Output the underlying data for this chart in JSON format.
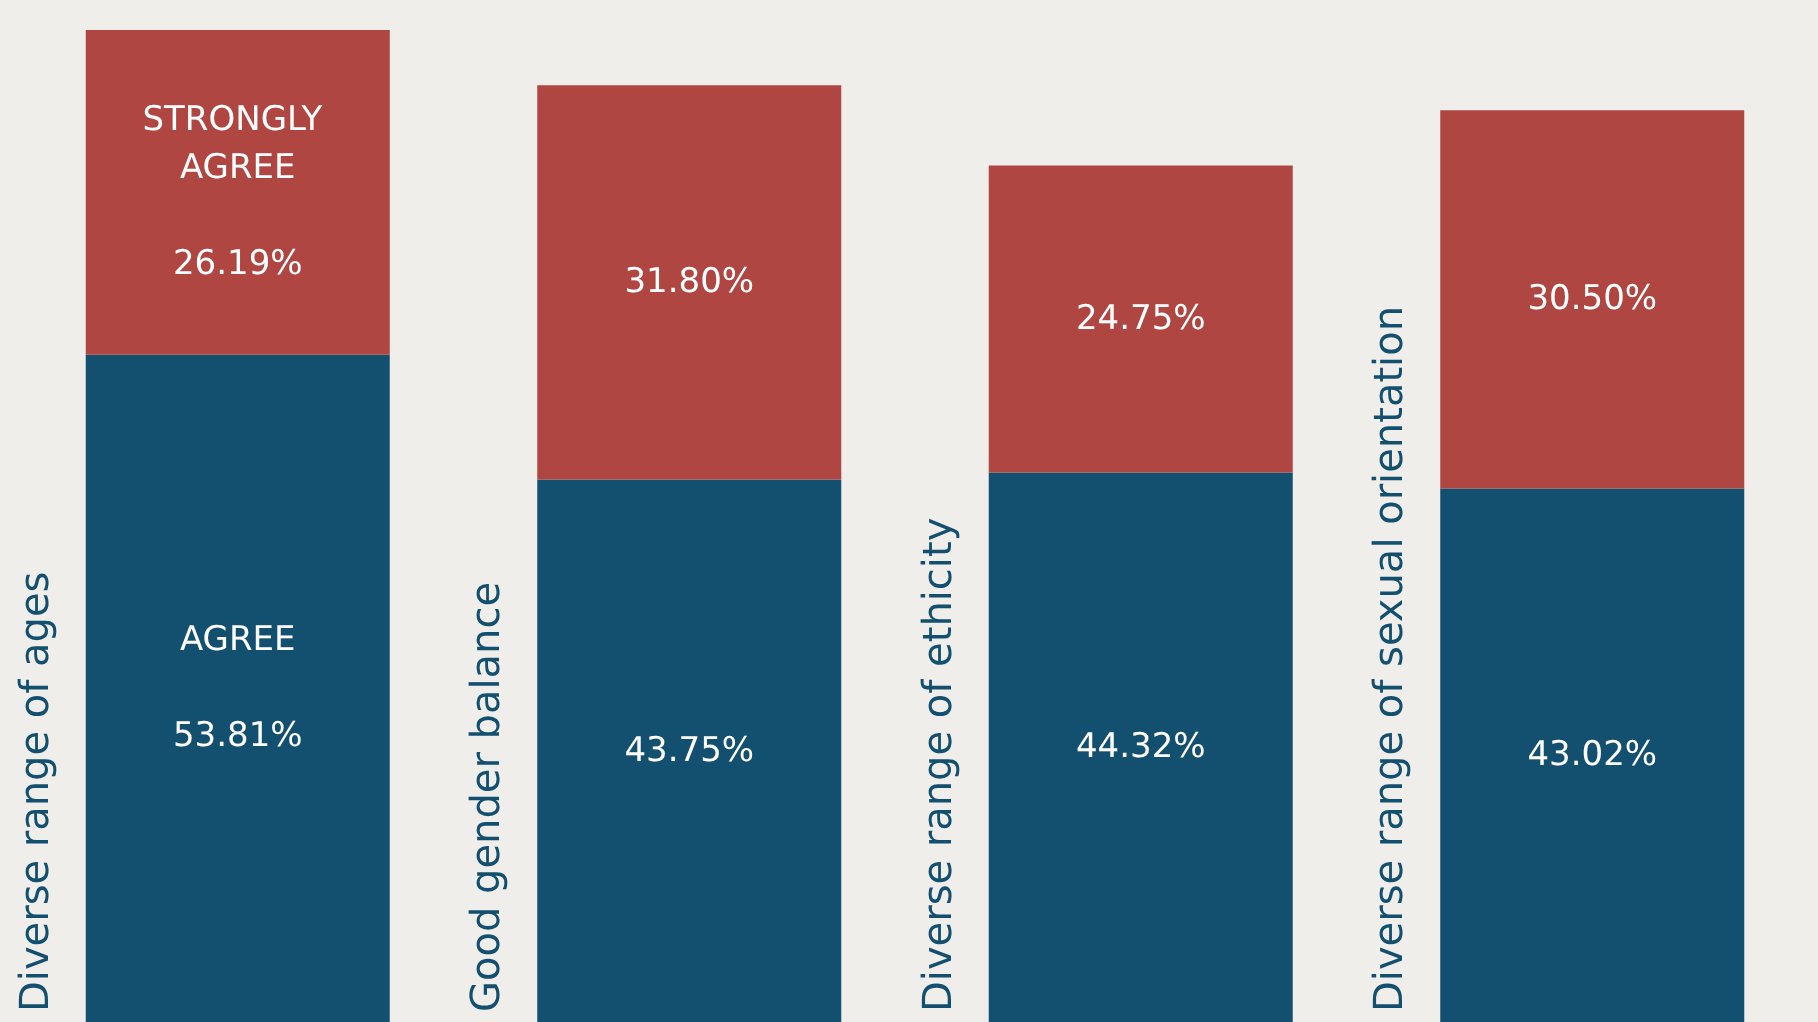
{
  "chart_data": {
    "type": "bar",
    "stacked": true,
    "tick_labels": "x",
    "categories": [
      "Diverse range of ages",
      "Good gender balance",
      "Diverse range of ethicity",
      "Diverse range of sexual orientation"
    ],
    "series": [
      {
        "name": "AGREE",
        "color": "#134f6e",
        "values": [
          53.81,
          43.75,
          44.32,
          43.02
        ],
        "value_labels": [
          "53.81%",
          "43.75%",
          "44.32%",
          "43.02%"
        ]
      },
      {
        "name": "STRONGLY AGREE",
        "color": "#b04642",
        "values": [
          26.19,
          31.8,
          24.75,
          30.5
        ],
        "value_labels": [
          "26.19%",
          "31.80%",
          "24.75%",
          "30.50%"
        ]
      }
    ]
  }
}
